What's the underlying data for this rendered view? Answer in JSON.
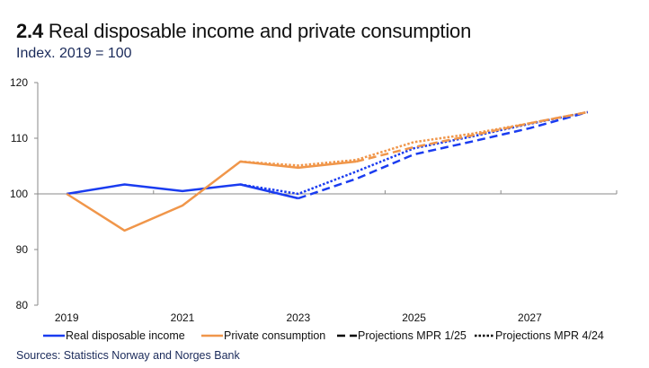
{
  "header": {
    "number": "2.4",
    "title": "Real disposable income and private consumption",
    "subtitle": "Index. 2019 = 100"
  },
  "footer": {
    "sources": "Sources: Statistics Norway and  Norges Bank"
  },
  "chart_data": {
    "type": "line",
    "title": "2.4 Real disposable income and private consumption",
    "subtitle": "Index. 2019 = 100",
    "xlabel": "",
    "ylabel": "",
    "x": [
      2019,
      2020,
      2021,
      2022,
      2023,
      2024,
      2025,
      2026,
      2027,
      2028
    ],
    "x_tick_labels": [
      "2019",
      "2021",
      "2023",
      "2025",
      "2027"
    ],
    "y_tick_labels": [
      "80",
      "90",
      "100",
      "110",
      "120"
    ],
    "ylim": [
      80,
      120
    ],
    "y_ticks": [
      80,
      90,
      100,
      110,
      120
    ],
    "baseline": 100,
    "grid": false,
    "legend_position": "bottom",
    "colors": {
      "income": "#1a3cf0",
      "consumption": "#f0964a",
      "axis": "#8a8a8a"
    },
    "series": [
      {
        "name": "Real disposable income",
        "key": "income",
        "style": "solid",
        "values": [
          100,
          101.7,
          100.5,
          101.7,
          99.2,
          null,
          null,
          null,
          null,
          null
        ]
      },
      {
        "name": "Private consumption",
        "key": "consumption",
        "style": "solid",
        "values": [
          100,
          93.4,
          97.9,
          105.8,
          104.7,
          105.8,
          null,
          null,
          null,
          null
        ]
      },
      {
        "name": "Real disposable income – Projections MPR 1/25",
        "key": "income",
        "style": "dashed",
        "values": [
          null,
          null,
          null,
          null,
          99.2,
          102.7,
          107.1,
          109.4,
          111.8,
          114.7
        ]
      },
      {
        "name": "Private consumption – Projections MPR 1/25",
        "key": "consumption",
        "style": "dashed",
        "values": [
          null,
          null,
          null,
          null,
          null,
          105.8,
          108.4,
          110.5,
          112.7,
          114.7
        ]
      },
      {
        "name": "Real disposable income – Projections MPR 4/24",
        "key": "income",
        "style": "dotted",
        "values": [
          null,
          null,
          null,
          101.7,
          100.0,
          104.0,
          108.2,
          110.3,
          112.6,
          114.7
        ]
      },
      {
        "name": "Private consumption – Projections MPR 4/24",
        "key": "consumption",
        "style": "dotted",
        "values": [
          null,
          null,
          null,
          105.8,
          105.1,
          106.1,
          109.3,
          110.8,
          112.7,
          114.7
        ]
      }
    ],
    "legend": [
      {
        "label": "Real disposable income",
        "style": "solid",
        "key": "income"
      },
      {
        "label": "Private consumption",
        "style": "solid",
        "key": "consumption"
      },
      {
        "label": "Projections MPR 1/25",
        "style": "dashed",
        "key": "black"
      },
      {
        "label": "Projections MPR 4/24",
        "style": "dotted",
        "key": "black"
      }
    ]
  }
}
